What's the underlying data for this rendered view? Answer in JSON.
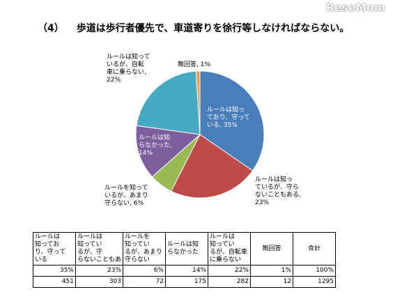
{
  "watermark": "ReseMom",
  "title": {
    "number": "（4）",
    "text": "歩道は歩行者優先で、車道寄りを徐行等しなければならない。"
  },
  "chart_data": {
    "type": "pie",
    "title": "歩道は歩行者優先で、車道寄りを徐行等しなければならない。",
    "start": "top, clockwise",
    "slices": [
      {
        "label": "ルールは知っており、守っている",
        "value": 35,
        "display": "ルールは知っ\nており、守って\nいる, 35%",
        "color": "#4a7ebb"
      },
      {
        "label": "ルールは知っているが、守らないこともある",
        "value": 23,
        "display": "ルールは知っ\nているが、守ら\nないこともある,\n23%",
        "color": "#be4b48"
      },
      {
        "label": "ルールを知っているが、あまり守らない",
        "value": 6,
        "display": "ルールを知って\nいるが、あまり\n守らない, 6%",
        "color": "#98b954"
      },
      {
        "label": "ルールは知らなかった",
        "value": 14,
        "display": "ルールは知\nらなかった,\n14%",
        "color": "#7d5fa0"
      },
      {
        "label": "ルールは知っているが、自転車に乗らない",
        "value": 22,
        "display": "ルールは知って\nいるが、自転\n車に乗らない,\n22%",
        "color": "#46aac5"
      },
      {
        "label": "無回答",
        "value": 1,
        "display": "無回答, 1%",
        "color": "#f79646"
      }
    ]
  },
  "table": {
    "headers": [
      "ルールは\n知ってお\nり、守って\nいる",
      "ルールは\n知ってい\nるが、守\nらないこともあ",
      "ルールを\n知ってい\nるが、あまり\n守らない",
      "ルールは知\nらなかった",
      "ルールは\n知ってい\nるが、自転車\nに乗らない",
      "無回答",
      "合計"
    ],
    "percent_row": [
      "35%",
      "23%",
      "6%",
      "14%",
      "22%",
      "1%",
      "100%"
    ],
    "count_row": [
      "451",
      "303",
      "72",
      "175",
      "282",
      "12",
      "1295"
    ]
  }
}
